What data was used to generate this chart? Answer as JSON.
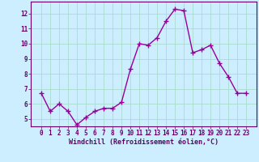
{
  "x": [
    0,
    1,
    2,
    3,
    4,
    5,
    6,
    7,
    8,
    9,
    10,
    11,
    12,
    13,
    14,
    15,
    16,
    17,
    18,
    19,
    20,
    21,
    22,
    23
  ],
  "y": [
    6.7,
    5.5,
    6.0,
    5.5,
    4.6,
    5.1,
    5.5,
    5.7,
    5.7,
    6.1,
    8.3,
    10.0,
    9.9,
    10.4,
    11.5,
    12.3,
    12.2,
    9.4,
    9.6,
    9.9,
    8.7,
    7.8,
    6.7,
    6.7
  ],
  "line_color": "#990099",
  "marker": "D",
  "marker_size": 2.0,
  "line_width": 1.0,
  "bg_color": "#cceeff",
  "grid_color": "#aaddcc",
  "xlabel": "Windchill (Refroidissement éolien,°C)",
  "xlabel_color": "#660066",
  "tick_color": "#660066",
  "ylim": [
    4.5,
    12.8
  ],
  "yticks": [
    5,
    6,
    7,
    8,
    9,
    10,
    11,
    12
  ],
  "xticks": [
    0,
    1,
    2,
    3,
    4,
    5,
    6,
    7,
    8,
    9,
    10,
    11,
    12,
    13,
    14,
    15,
    16,
    17,
    18,
    19,
    20,
    21,
    22,
    23
  ],
  "spine_color": "#660066",
  "font_size_xlabel": 6.0,
  "font_size_ticks": 5.5
}
